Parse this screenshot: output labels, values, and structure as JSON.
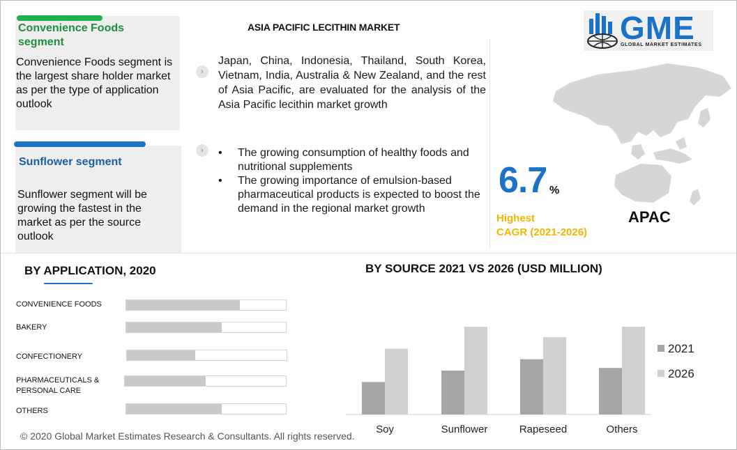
{
  "cards": {
    "convenience": {
      "title": "Convenience Foods segment",
      "text": "Convenience Foods segment is the largest share holder market as per the type of application outlook",
      "accent": "#22b04b"
    },
    "sunflower": {
      "title": "Sunflower segment",
      "text": "Sunflower segment will be growing the fastest in the market as per the source outlook",
      "accent": "#1a73c8"
    }
  },
  "main_title": "ASIA PACIFIC LECITHIN MARKET",
  "intro": "Japan, China, Indonesia, Thailand, South Korea, Vietnam, India, Australia & New Zealand, and the rest of Asia Pacific, are evaluated for the analysis of the Asia Pacific lecithin market growth",
  "bullets": [
    "The growing consumption of healthy foods and nutritional supplements",
    "The growing importance of emulsion-based pharmaceutical products is expected to boost the demand in the regional market growth"
  ],
  "bullet_symbol": "•",
  "chevron_icon": "chevron-right-icon",
  "logo": {
    "name": "GME",
    "tagline": "GLOBAL MARKET ESTIMATES"
  },
  "cagr": {
    "value": "6.7",
    "unit": "%",
    "label_line1": "Highest",
    "label_line2": "CAGR (2021-2026)",
    "color": "#f5b400"
  },
  "region": "APAC",
  "colors": {
    "accent_blue": "#1a73c8",
    "accent_green": "#22b04b",
    "bar_dark": "#a6a6a6",
    "bar_light": "#d0d0d0"
  },
  "chart_data": [
    {
      "type": "bar",
      "orientation": "horizontal",
      "title": "BY  APPLICATION, 2020",
      "categories": [
        "CONVENIENCE FOODS",
        "BAKERY",
        "CONFECTIONERY",
        "PHARMACEUTICALS & PERSONAL CARE",
        "OTHERS"
      ],
      "values": [
        0.71,
        0.6,
        0.43,
        0.5,
        0.6
      ],
      "value_scale": "fraction of track",
      "grid": false
    },
    {
      "type": "bar",
      "title": "BY SOURCE 2021 VS 2026 (USD MILLION)",
      "categories": [
        "Soy",
        "Sunflower",
        "Rapeseed",
        "Others"
      ],
      "series": [
        {
          "name": "2021",
          "values": [
            37,
            50,
            63,
            53
          ],
          "color": "#a6a6a6"
        },
        {
          "name": "2026",
          "values": [
            75,
            100,
            88,
            100
          ],
          "color": "#d0d0d0"
        }
      ],
      "ylim": [
        0,
        100
      ],
      "value_scale": "relative height, unlabeled",
      "legend": "right",
      "grid": false
    }
  ],
  "footer": "© 2020 Global Market Estimates Research & Consultants. All rights reserved."
}
